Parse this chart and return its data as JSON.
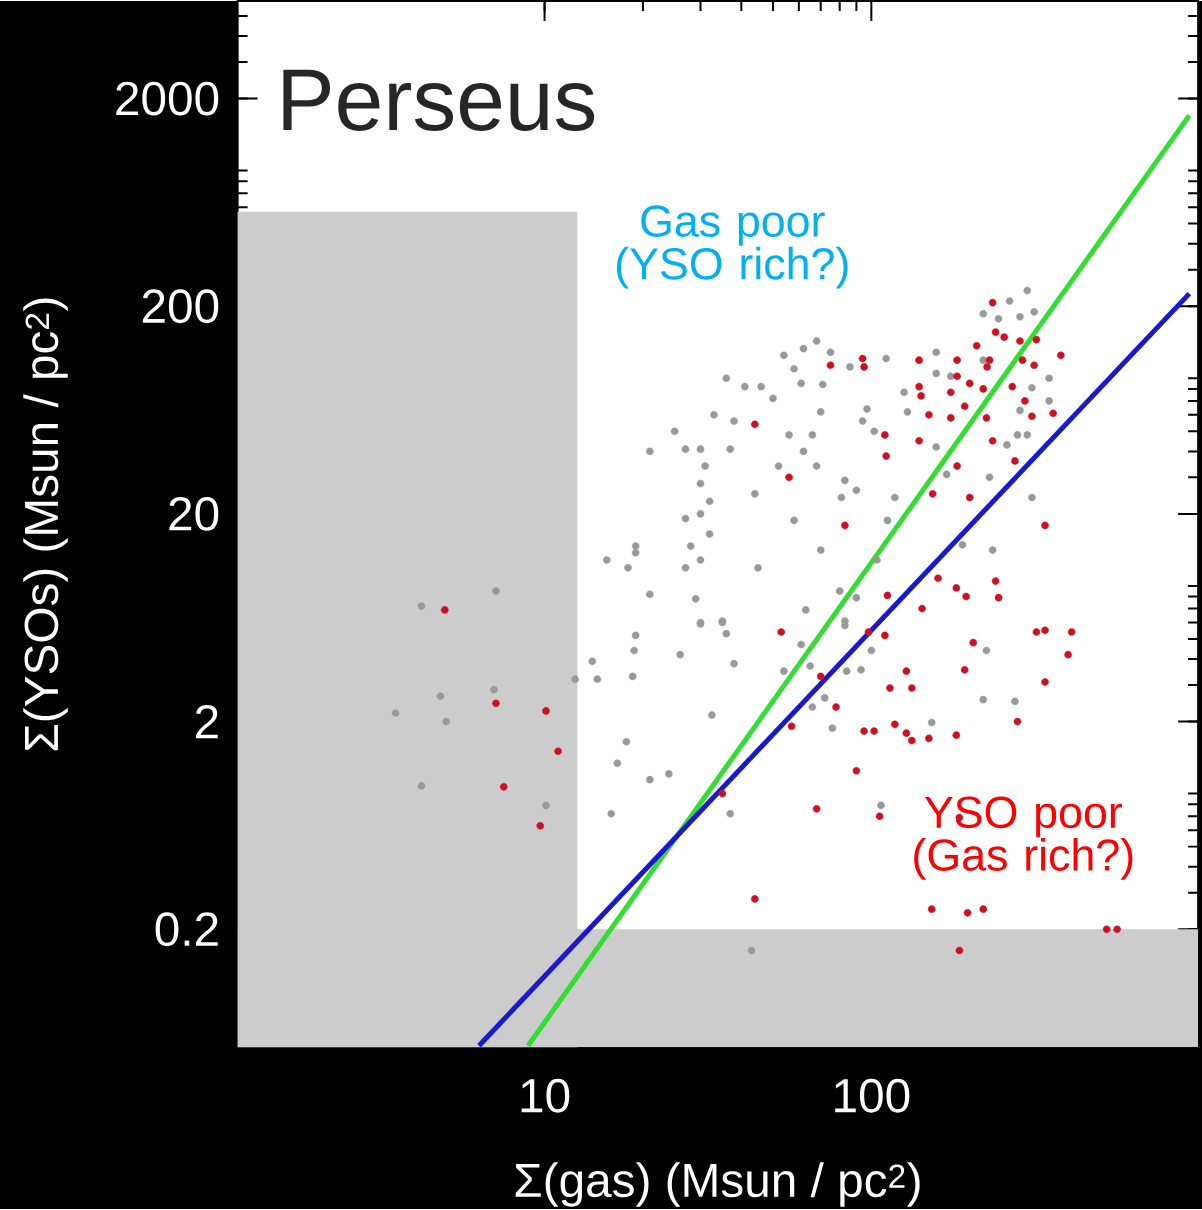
{
  "chart_data": {
    "type": "scatter",
    "title": "Perseus",
    "xlabel": "Σ(gas) (Msun / pc$^{2}$)",
    "ylabel": "Σ(YSOs) (Msun / pc$^{2}$)",
    "annotations": [
      "Gas poor (YSO rich?)",
      "YSO poor (Gas rich?)"
    ],
    "log": "xy",
    "xlim": [
      1.15,
      1000
    ],
    "ylim": [
      0.054,
      5900
    ],
    "xticks": [
      10,
      100
    ],
    "yticks": [
      0.2,
      2,
      20,
      200,
      2000
    ],
    "bands": [
      {
        "axis": "y",
        "from": 0.054,
        "to": 0.2,
        "color": "#cccccc"
      }
    ],
    "series": [
      {
        "type": "area",
        "marker": "none",
        "color": "#cccccc",
        "x": [
          1.15,
          12.6
        ],
        "values": [
          570,
          570
        ]
      },
      {
        "marker": "circle",
        "color": "#999999",
        "x": [
          54,
          36,
          41,
          46,
          50,
          33,
          38,
          25,
          21,
          27,
          30,
          37,
          31,
          56,
          52,
          30,
          32,
          44,
          30,
          27,
          32,
          19,
          15.5,
          18,
          19,
          28,
          30,
          27,
          45,
          21,
          29,
          30,
          35,
          4.2,
          7.1,
          300,
          265,
          220,
          245,
          285,
          315,
          68,
          62,
          75,
          86,
          111,
          158,
          58,
          61,
          71,
          158,
          175,
          220,
          350,
          310,
          126,
          129,
          97,
          94,
          70,
          102,
          66,
          62,
          68,
          158,
          260,
          280,
          300,
          350,
          285,
          170,
          83,
          230,
          81,
          90,
          118,
          310,
          58,
          112,
          70,
          235,
          190,
          104,
          80,
          90,
          63,
          83,
          30,
          35,
          36,
          19,
          18.8,
          26,
          14,
          12.4,
          14.5,
          18.6,
          38,
          32.5,
          17.8,
          16.7,
          21,
          24,
          16,
          37,
          4.8,
          7.0,
          3.5,
          4.2,
          5.0,
          10.1,
          54,
          83,
          61,
          65,
          84,
          93,
          100,
          225,
          220,
          275,
          72,
          66,
          76,
          153,
          107,
          43
        ],
        "values": [
          116,
          90,
          82,
          82,
          72,
          60,
          56,
          50,
          40,
          41,
          41,
          41,
          34,
          48,
          34,
          28,
          23,
          25,
          20,
          19,
          16,
          14,
          12,
          11,
          13,
          14,
          12,
          11,
          11,
          8.2,
          7.8,
          6.0,
          6.1,
          7.2,
          8.5,
          238,
          212,
          184,
          174,
          178,
          188,
          136,
          125,
          120,
          102,
          112,
          120,
          100,
          85,
          84,
          95,
          92,
          110,
          90,
          81,
          77,
          62,
          64,
          56,
          62,
          50,
          48,
          40,
          34,
          42,
          43,
          48,
          48,
          70,
          63,
          31,
          29,
          30,
          24,
          26,
          24,
          24,
          18.6,
          18.6,
          13.4,
          13.4,
          14.2,
          12,
          8.5,
          7.9,
          6.9,
          6.1,
          5.9,
          6.0,
          5.3,
          5.2,
          4.4,
          4.2,
          3.9,
          3.2,
          3.2,
          3.3,
          3.8,
          2.15,
          1.6,
          1.26,
          1.05,
          1.12,
          0.72,
          0.72,
          2.65,
          2.85,
          2.2,
          0.98,
          2.0,
          0.79,
          3.5,
          5.8,
          4.7,
          3.7,
          3.5,
          3.55,
          4.4,
          4.4,
          2.55,
          2.5,
          2.6,
          2.35,
          1.86,
          1.98,
          0.79,
          0.158
        ]
      },
      {
        "marker": "circle",
        "color": "#cc1122",
        "x": [
          44,
          56,
          4.95,
          235,
          240,
          255,
          210,
          285,
          320,
          380,
          94,
          75,
          95,
          140,
          183,
          230,
          226,
          290,
          315,
          183,
          200,
          220,
          270,
          140,
          142,
          175,
          193,
          295,
          150,
          175,
          225,
          310,
          360,
          110,
          140,
          235,
          111,
          183,
          275,
          154,
          200,
          83,
          340,
          160,
          182,
          195,
          240,
          245,
          112,
          143,
          53,
          7.1,
          10.1,
          11,
          7.5,
          9.7,
          35,
          57,
          44,
          320,
          340,
          410,
          205,
          400,
          193,
          340,
          128,
          114,
          133,
          110,
          98,
          70,
          78,
          280,
          95,
          102,
          118,
          128,
          133,
          150,
          182,
          90,
          68,
          106,
          186,
          153,
          197,
          220,
          525,
          565,
          186
        ],
        "values": [
          54,
          30,
          6.9,
          208,
          150,
          142,
          129,
          136,
          138,
          116,
          112,
          104,
          102,
          110,
          110,
          110,
          102,
          110,
          104,
          92,
          85,
          80,
          82,
          82,
          74,
          77,
          66,
          70,
          60,
          58,
          58,
          59,
          61,
          48,
          45,
          45,
          38,
          34,
          36,
          25,
          24,
          17.6,
          17.6,
          9.8,
          8.8,
          8.0,
          9.5,
          7.9,
          8.1,
          7.0,
          5.4,
          2.45,
          2.25,
          1.44,
          0.97,
          0.63,
          0.9,
          1.9,
          0.28,
          5.4,
          5.5,
          5.4,
          4.8,
          4.2,
          3.55,
          3.1,
          3.5,
          2.9,
          2.9,
          5.2,
          5.4,
          3.3,
          2.35,
          2.0,
          1.8,
          1.8,
          1.94,
          1.76,
          1.62,
          1.66,
          1.72,
          1.16,
          0.76,
          0.7,
          0.69,
          0.25,
          0.24,
          0.25,
          0.2,
          0.2,
          0.158
        ]
      },
      {
        "type": "line",
        "marker": "none",
        "color": "#33dd33",
        "x": [
          8.9,
          940
        ],
        "values": [
          0.055,
          1660
        ]
      },
      {
        "type": "line",
        "marker": "none",
        "color": "#1a1acc",
        "x": [
          6.3,
          940
        ],
        "values": [
          0.055,
          230
        ]
      }
    ]
  }
}
